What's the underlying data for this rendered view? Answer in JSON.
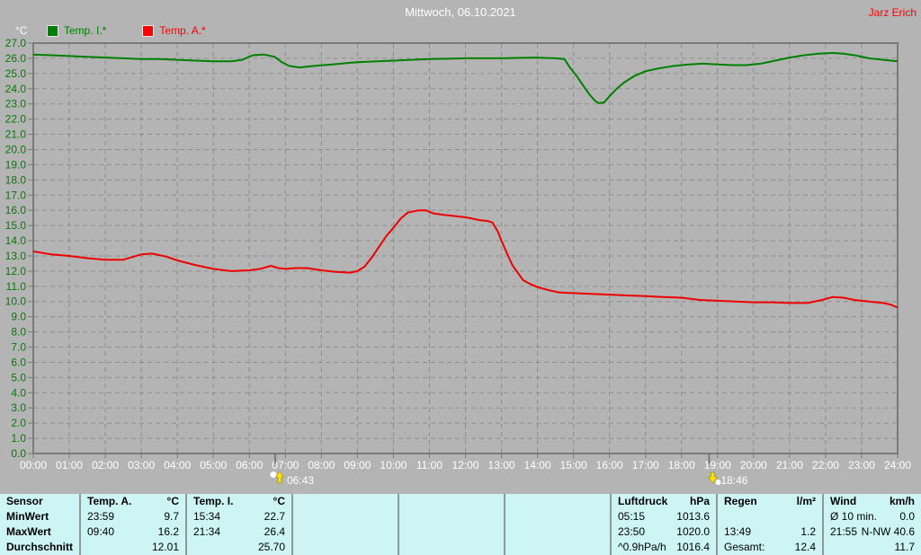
{
  "header": {
    "title": "Mittwoch, 06.10.2021",
    "user": "Jarz Erich"
  },
  "y_axis_unit": "°C",
  "legend": {
    "items": [
      {
        "label": "Temp. I.*",
        "color": "#008000"
      },
      {
        "label": "Temp. A.*",
        "color": "#ff0000"
      }
    ]
  },
  "colors": {
    "background": "#b4b4b4",
    "grid": "#8d8d8d",
    "axis": "#7a7a7a",
    "y_tick_text": "#007d00",
    "x_tick_text": "#ffffff",
    "marker_text": "#ffffff",
    "sun_icon_yellow": "#ffe000",
    "table_bg": "#cdf5f5",
    "table_divider": "#8e9999"
  },
  "chart_data": {
    "type": "line",
    "title": "Mittwoch, 06.10.2021",
    "xlabel": "",
    "ylabel": "°C",
    "ylim": [
      0,
      27
    ],
    "ytick_step": 1.0,
    "yticks": [
      "27.0",
      "26.0",
      "25.0",
      "24.0",
      "23.0",
      "22.0",
      "21.0",
      "20.0",
      "19.0",
      "18.0",
      "17.0",
      "16.0",
      "15.0",
      "14.0",
      "13.0",
      "12.0",
      "11.0",
      "10.0",
      "9.0",
      "8.0",
      "7.0",
      "6.0",
      "5.0",
      "4.0",
      "3.0",
      "2.0",
      "1.0",
      "0.0"
    ],
    "xticks": [
      "00:00",
      "01:00",
      "02:00",
      "03:00",
      "04:00",
      "05:00",
      "06:00",
      "07:00",
      "08:00",
      "09:00",
      "10:00",
      "11:00",
      "12:00",
      "13:00",
      "14:00",
      "15:00",
      "16:00",
      "17:00",
      "18:00",
      "19:00",
      "20:00",
      "21:00",
      "22:00",
      "23:00",
      "24:00"
    ],
    "grid": "dashed",
    "legend_position": "top-left",
    "series": [
      {
        "name": "Temp. I.*",
        "color": "#008000",
        "points": [
          [
            0,
            26.25
          ],
          [
            0.5,
            26.2
          ],
          [
            1,
            26.15
          ],
          [
            1.5,
            26.1
          ],
          [
            2,
            26.05
          ],
          [
            2.5,
            26.0
          ],
          [
            3,
            25.95
          ],
          [
            3.5,
            25.95
          ],
          [
            4,
            25.9
          ],
          [
            4.5,
            25.85
          ],
          [
            5,
            25.8
          ],
          [
            5.5,
            25.8
          ],
          [
            5.8,
            25.9
          ],
          [
            6.1,
            26.2
          ],
          [
            6.4,
            26.25
          ],
          [
            6.7,
            26.1
          ],
          [
            6.9,
            25.75
          ],
          [
            7.1,
            25.5
          ],
          [
            7.4,
            25.4
          ],
          [
            7.8,
            25.5
          ],
          [
            8.3,
            25.6
          ],
          [
            9,
            25.75
          ],
          [
            10,
            25.85
          ],
          [
            11,
            25.95
          ],
          [
            12,
            26.0
          ],
          [
            13,
            26.0
          ],
          [
            13.9,
            26.05
          ],
          [
            14.5,
            26.0
          ],
          [
            14.75,
            25.95
          ],
          [
            14.9,
            25.4
          ],
          [
            15.1,
            24.8
          ],
          [
            15.3,
            24.1
          ],
          [
            15.45,
            23.6
          ],
          [
            15.6,
            23.2
          ],
          [
            15.7,
            23.05
          ],
          [
            15.85,
            23.1
          ],
          [
            16.0,
            23.5
          ],
          [
            16.2,
            24.0
          ],
          [
            16.4,
            24.4
          ],
          [
            16.7,
            24.85
          ],
          [
            17.0,
            25.15
          ],
          [
            17.4,
            25.35
          ],
          [
            17.8,
            25.5
          ],
          [
            18.2,
            25.6
          ],
          [
            18.6,
            25.65
          ],
          [
            19.0,
            25.6
          ],
          [
            19.4,
            25.55
          ],
          [
            19.8,
            25.55
          ],
          [
            20.2,
            25.65
          ],
          [
            20.6,
            25.85
          ],
          [
            21.0,
            26.05
          ],
          [
            21.4,
            26.2
          ],
          [
            21.8,
            26.3
          ],
          [
            22.2,
            26.35
          ],
          [
            22.5,
            26.3
          ],
          [
            22.8,
            26.2
          ],
          [
            23.2,
            26.0
          ],
          [
            23.6,
            25.9
          ],
          [
            24,
            25.8
          ]
        ]
      },
      {
        "name": "Temp. A.*",
        "color": "#ee0000",
        "points": [
          [
            0,
            13.3
          ],
          [
            0.5,
            13.1
          ],
          [
            1,
            13.0
          ],
          [
            1.5,
            12.85
          ],
          [
            2,
            12.75
          ],
          [
            2.5,
            12.75
          ],
          [
            3,
            13.1
          ],
          [
            3.3,
            13.15
          ],
          [
            3.7,
            12.95
          ],
          [
            4,
            12.7
          ],
          [
            4.5,
            12.4
          ],
          [
            5,
            12.15
          ],
          [
            5.5,
            12.0
          ],
          [
            6,
            12.05
          ],
          [
            6.3,
            12.15
          ],
          [
            6.6,
            12.35
          ],
          [
            6.8,
            12.2
          ],
          [
            7,
            12.15
          ],
          [
            7.3,
            12.2
          ],
          [
            7.6,
            12.2
          ],
          [
            8,
            12.05
          ],
          [
            8.4,
            11.95
          ],
          [
            8.8,
            11.9
          ],
          [
            9,
            12.0
          ],
          [
            9.2,
            12.3
          ],
          [
            9.4,
            12.9
          ],
          [
            9.6,
            13.6
          ],
          [
            9.8,
            14.3
          ],
          [
            10,
            14.85
          ],
          [
            10.2,
            15.45
          ],
          [
            10.4,
            15.85
          ],
          [
            10.7,
            16.0
          ],
          [
            10.9,
            16.0
          ],
          [
            11.1,
            15.8
          ],
          [
            11.4,
            15.7
          ],
          [
            11.8,
            15.6
          ],
          [
            12.1,
            15.5
          ],
          [
            12.4,
            15.35
          ],
          [
            12.6,
            15.3
          ],
          [
            12.75,
            15.2
          ],
          [
            12.9,
            14.6
          ],
          [
            13.0,
            14.0
          ],
          [
            13.15,
            13.2
          ],
          [
            13.3,
            12.4
          ],
          [
            13.45,
            11.9
          ],
          [
            13.6,
            11.4
          ],
          [
            13.8,
            11.15
          ],
          [
            14,
            10.95
          ],
          [
            14.3,
            10.75
          ],
          [
            14.6,
            10.6
          ],
          [
            15,
            10.55
          ],
          [
            15.5,
            10.5
          ],
          [
            16,
            10.45
          ],
          [
            16.5,
            10.4
          ],
          [
            17,
            10.35
          ],
          [
            17.5,
            10.3
          ],
          [
            18,
            10.25
          ],
          [
            18.5,
            10.1
          ],
          [
            19,
            10.05
          ],
          [
            19.5,
            10.0
          ],
          [
            20,
            9.95
          ],
          [
            20.5,
            9.95
          ],
          [
            21,
            9.9
          ],
          [
            21.5,
            9.9
          ],
          [
            21.9,
            10.1
          ],
          [
            22.2,
            10.3
          ],
          [
            22.5,
            10.25
          ],
          [
            22.8,
            10.1
          ],
          [
            23.2,
            10.0
          ],
          [
            23.6,
            9.9
          ],
          [
            23.8,
            9.8
          ],
          [
            24,
            9.6
          ]
        ]
      }
    ],
    "sun_markers": [
      {
        "name": "sunrise",
        "label": "06:43",
        "hour": 6.7167
      },
      {
        "name": "sunset",
        "label": "18:46",
        "hour": 18.7667
      }
    ]
  },
  "stats_table": {
    "row_header": [
      "Sensor",
      "MinWert",
      "MaxWert",
      "Durchschnitt"
    ],
    "columns": [
      {
        "header": "Temp. A.",
        "unit": "°C",
        "rows": [
          [
            "23:59",
            "9.7"
          ],
          [
            "09:40",
            "16.2"
          ],
          [
            "",
            "12.01"
          ]
        ]
      },
      {
        "header": "Temp. I.",
        "unit": "°C",
        "rows": [
          [
            "15:34",
            "22.7"
          ],
          [
            "21:34",
            "26.4"
          ],
          [
            "",
            "25.70"
          ]
        ]
      },
      {
        "header": "",
        "unit": "",
        "rows": [
          [
            "",
            ""
          ],
          [
            "",
            ""
          ],
          [
            "",
            ""
          ]
        ]
      },
      {
        "header": "",
        "unit": "",
        "rows": [
          [
            "",
            ""
          ],
          [
            "",
            ""
          ],
          [
            "",
            ""
          ]
        ]
      },
      {
        "header": "",
        "unit": "",
        "rows": [
          [
            "",
            ""
          ],
          [
            "",
            ""
          ],
          [
            "",
            ""
          ]
        ]
      },
      {
        "header": "Luftdruck",
        "unit": "hPa",
        "rows": [
          [
            "05:15",
            "1013.6"
          ],
          [
            "23:50",
            "1020.0"
          ],
          [
            "^0.9hPa/h",
            "1016.4"
          ]
        ]
      },
      {
        "header": "Regen",
        "unit": "l/m²",
        "rows": [
          [
            "",
            ""
          ],
          [
            "13:49",
            "1.2"
          ],
          [
            "Gesamt:",
            "12.4"
          ]
        ]
      },
      {
        "header": "Wind",
        "unit": "km/h",
        "rows": [
          [
            "Ø 10 min.",
            "0.0"
          ],
          [
            "21:55",
            "N-NW 40.6"
          ],
          [
            "",
            "11.7"
          ]
        ]
      }
    ]
  }
}
